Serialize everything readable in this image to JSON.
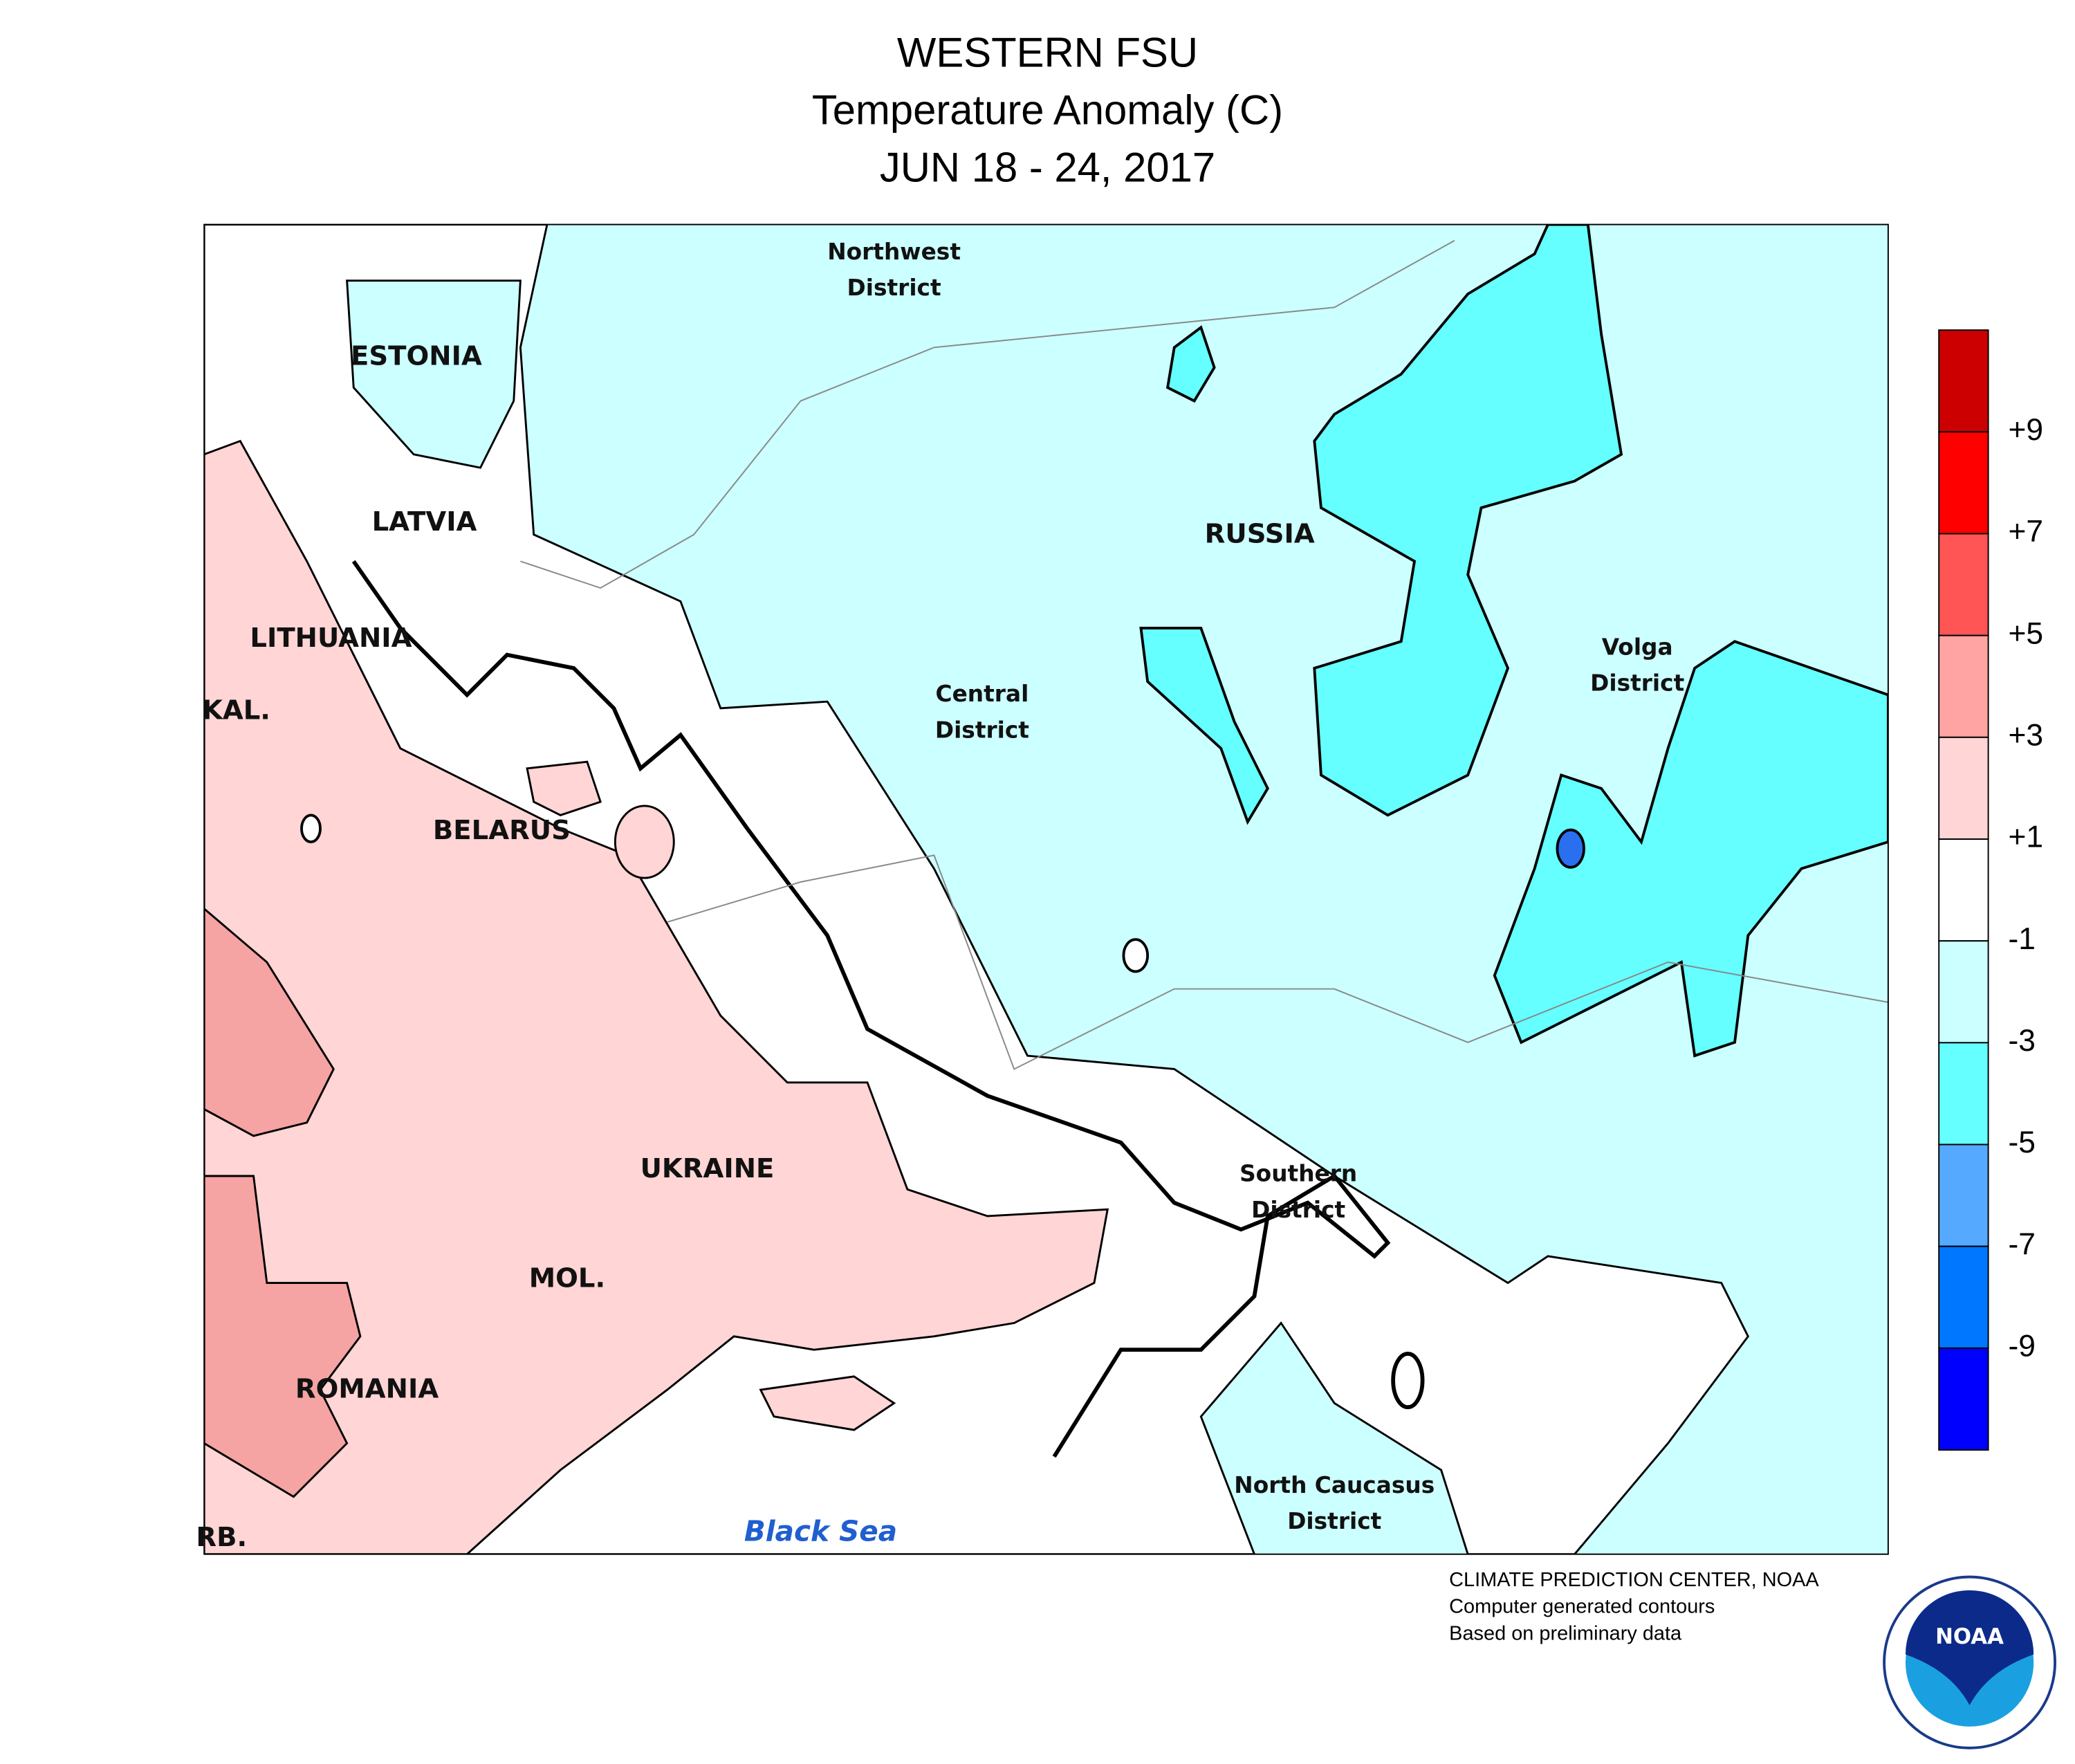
{
  "header": {
    "title_lines": [
      "WESTERN FSU",
      "Temperature Anomaly (C)",
      "JUN 18 - 24, 2017"
    ]
  },
  "map": {
    "labels": [
      [
        "ESTONIA"
      ],
      [
        "LATVIA"
      ],
      [
        "LITHUANIA"
      ],
      [
        "KAL."
      ],
      [
        "BELARUS"
      ],
      [
        "UKRAINE"
      ],
      [
        "MOL."
      ],
      [
        "ROMANIA"
      ],
      [
        "RB."
      ],
      [
        "RUSSIA"
      ],
      [
        "Northwest",
        "District"
      ],
      [
        "Central",
        "District"
      ],
      [
        "Volga",
        "District"
      ],
      [
        "Southern",
        "District"
      ],
      [
        "North Caucasus",
        "District"
      ]
    ],
    "sea": "Black Sea"
  },
  "legend": {
    "colors": [
      "#cc0000",
      "#ff0000",
      "#ff5555",
      "#ffa3a3",
      "#ffd5d5",
      "#ffffff",
      "#ccffff",
      "#66ffff",
      "#55aaff",
      "#0077ff",
      "#0000ff"
    ],
    "labels": [
      "+9",
      "+7",
      "+5",
      "+3",
      "+1",
      "-1",
      "-3",
      "-5",
      "-7",
      "-9"
    ]
  },
  "footer": {
    "lines": [
      "CLIMATE PREDICTION CENTER, NOAA",
      "Computer generated contours",
      "Based on preliminary data"
    ],
    "logo": "NOAA"
  }
}
